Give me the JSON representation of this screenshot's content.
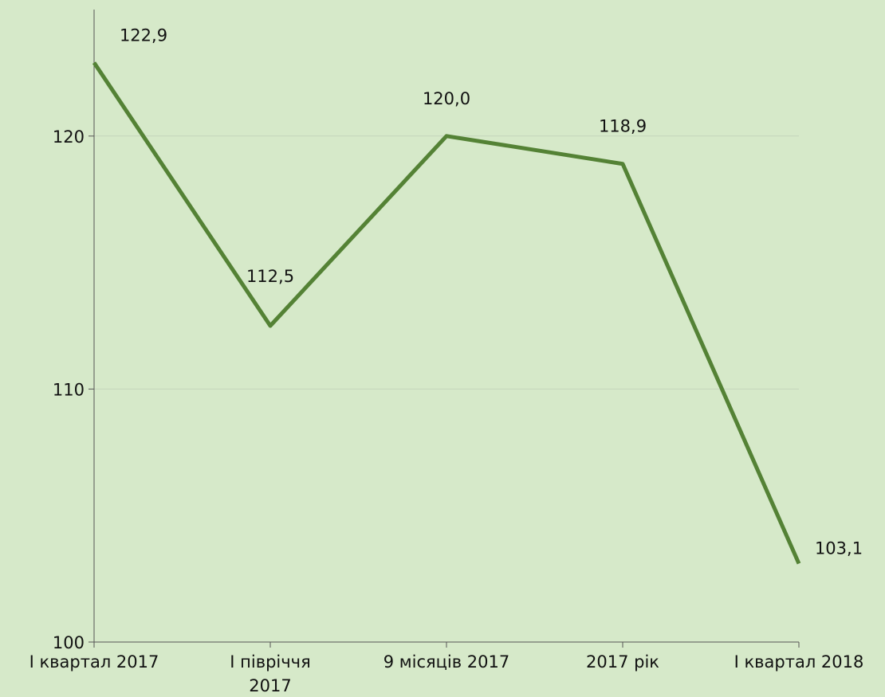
{
  "chart_data": {
    "type": "line",
    "categories": [
      "I квартал 2017",
      "I півріччя 2017",
      "9 місяців 2017",
      "2017 рік",
      "I квартал 2018"
    ],
    "series": [
      {
        "color": "#548235",
        "values": [
          122.9,
          112.5,
          120.0,
          118.9,
          103.1
        ],
        "value_labels": [
          "122,9",
          "112,5",
          "120,0",
          "118,9",
          "103,1"
        ]
      }
    ],
    "ylim": [
      100,
      125
    ],
    "yticks": [
      100,
      110,
      120
    ],
    "grid": true
  }
}
